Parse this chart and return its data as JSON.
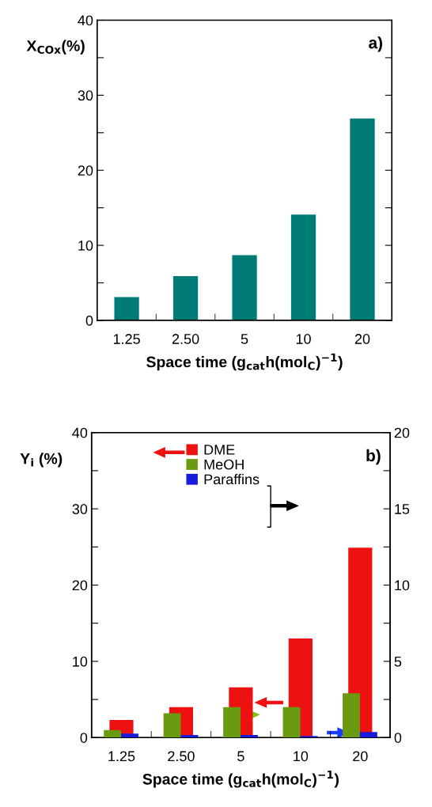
{
  "chart_data": [
    {
      "type": "bar",
      "categories": [
        "1.25",
        "2.50",
        "5",
        "10",
        "20"
      ],
      "values": [
        3.1,
        5.9,
        8.7,
        14.1,
        26.9
      ],
      "color": "#007b76",
      "ylabel": "X$_{COx}$(%)",
      "xlabel": "Space time (g$_{cat}$h(mol$_{C}$)$^{−1}$)",
      "ylim": [
        0,
        40
      ],
      "yticks": [
        0,
        {
          "value": 5,
          "label": null
        },
        10,
        {
          "value": 15,
          "label": null
        },
        20,
        {
          "value": 25,
          "label": null
        },
        30,
        {
          "value": 35,
          "label": null
        },
        40
      ],
      "annotations": [
        "a)"
      ],
      "grid": false,
      "legend": false
    },
    {
      "type": "bar",
      "categories": [
        "1.25",
        "2.50",
        "5",
        "10",
        "20"
      ],
      "series": [
        {
          "name": "DME",
          "color": "#ee1111",
          "values": [
            2.3,
            4.0,
            6.6,
            13.0,
            24.9
          ]
        },
        {
          "name": "MeOH",
          "color": "#6a9a10",
          "values": [
            0.5,
            1.6,
            2.0,
            2.0,
            2.9
          ],
          "axis": "y2"
        },
        {
          "name": "Paraffins",
          "color": "#1a1adc",
          "values": [
            0.26,
            0.17,
            0.17,
            0.1,
            0.36
          ],
          "axis": "y2"
        }
      ],
      "ylabel": "Y$_{i}$ (%)",
      "xlabel": "Space time (g$_{cat}$h(mol$_{C}$)$^{−1}$)",
      "ylim": [
        0,
        40
      ],
      "yticks": [
        0,
        {
          "value": 5,
          "label": null
        },
        10,
        {
          "value": 15,
          "label": null
        },
        20,
        {
          "value": 25,
          "label": null
        },
        30,
        {
          "value": 35,
          "label": null
        },
        40
      ],
      "y2lim": [
        0,
        20
      ],
      "y2ticks": [
        0,
        {
          "value": 2.5,
          "label": null
        },
        5,
        {
          "value": 7.5,
          "label": null
        },
        10,
        {
          "value": 12.5,
          "label": null
        },
        15,
        {
          "value": 17.5,
          "label": null
        },
        20
      ],
      "annotations": [
        "b)"
      ],
      "grid": false,
      "legend": "top"
    }
  ]
}
